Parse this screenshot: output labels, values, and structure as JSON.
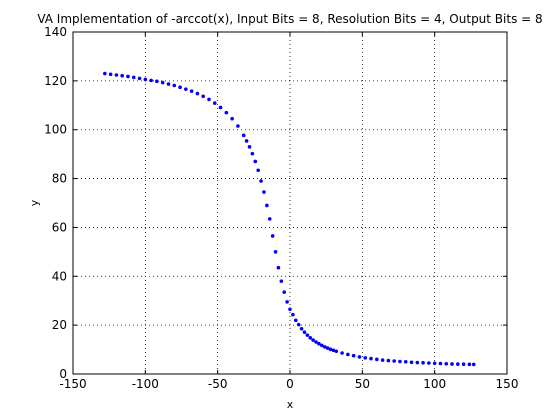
{
  "chart_data": {
    "type": "scatter",
    "title": "VA Implementation of -arccot(x), Input Bits = 8, Resolution Bits = 4, Output Bits = 8",
    "xlabel": "x",
    "ylabel": "y",
    "xlim": [
      -150,
      150
    ],
    "ylim": [
      0,
      140
    ],
    "xticks": [
      -150,
      -100,
      -50,
      0,
      50,
      100,
      150
    ],
    "yticks": [
      0,
      20,
      40,
      60,
      80,
      100,
      120,
      140
    ],
    "grid": true,
    "marker": "dot",
    "color": "#0000ff",
    "x": [
      -128,
      -124,
      -120,
      -116,
      -112,
      -108,
      -104,
      -100,
      -96,
      -92,
      -88,
      -84,
      -80,
      -76,
      -72,
      -68,
      -64,
      -60,
      -56,
      -52,
      -48,
      -44,
      -40,
      -36,
      -32,
      -30,
      -28,
      -26,
      -24,
      -22,
      -20,
      -18,
      -16,
      -14,
      -12,
      -10,
      -8,
      -6,
      -4,
      -2,
      0,
      2,
      4,
      6,
      8,
      10,
      12,
      14,
      16,
      18,
      20,
      22,
      24,
      26,
      28,
      30,
      32,
      36,
      40,
      44,
      48,
      52,
      56,
      60,
      64,
      68,
      72,
      76,
      80,
      84,
      88,
      92,
      96,
      100,
      104,
      108,
      112,
      116,
      120,
      124,
      127
    ],
    "y": [
      123,
      122.7,
      122.4,
      122.1,
      121.8,
      121.4,
      121,
      120.6,
      120.2,
      119.8,
      119.3,
      118.7,
      118.1,
      117.4,
      116.6,
      115.8,
      114.8,
      113.7,
      112.4,
      110.9,
      109.1,
      107,
      104.5,
      101.5,
      97.7,
      95.4,
      93,
      90.2,
      87,
      83.4,
      79,
      74.5,
      69,
      63.5,
      56.5,
      50,
      43.5,
      38,
      33.5,
      29.5,
      26.5,
      24.3,
      22,
      20.2,
      18.5,
      17.1,
      15.9,
      14.8,
      13.9,
      13.1,
      12.4,
      11.7,
      11.1,
      10.6,
      10.1,
      9.7,
      9.3,
      8.6,
      8,
      7.5,
      7,
      6.6,
      6.3,
      6.0,
      5.7,
      5.5,
      5.3,
      5.1,
      5.0,
      4.8,
      4.7,
      4.6,
      4.5,
      4.4,
      4.3,
      4.2,
      4.1,
      4.05,
      4.0,
      3.95,
      3.9
    ]
  }
}
